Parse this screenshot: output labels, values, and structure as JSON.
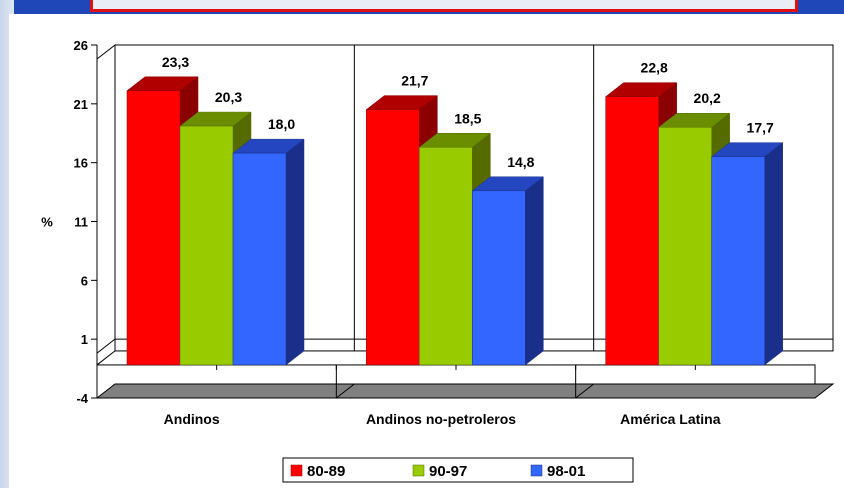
{
  "chart_data": {
    "type": "bar",
    "categories": [
      "Andinos",
      "Andinos no-petroleros",
      "América Latina"
    ],
    "series": [
      {
        "name": "80-89",
        "values": [
          23.3,
          21.7,
          22.8
        ],
        "labels": [
          "23,3",
          "21,7",
          "22,8"
        ],
        "color": "#ff0000",
        "side_color": "#8b0000",
        "top_color": "#b00000"
      },
      {
        "name": "90-97",
        "values": [
          20.3,
          18.5,
          20.2
        ],
        "labels": [
          "20,3",
          "18,5",
          "20,2"
        ],
        "color": "#99cc00",
        "side_color": "#556b00",
        "top_color": "#6b8e00"
      },
      {
        "name": "98-01",
        "values": [
          18.0,
          14.8,
          17.7
        ],
        "labels": [
          "18,0",
          "14,8",
          "17,7"
        ],
        "color": "#3366ff",
        "side_color": "#1a2f8a",
        "top_color": "#2446c0"
      }
    ],
    "yticks": [
      "26",
      "21",
      "16",
      "11",
      "6",
      "1",
      "-4"
    ],
    "ylabel": "%",
    "ylim": [
      -4,
      26
    ],
    "grid": false,
    "legend_position": "bottom"
  }
}
